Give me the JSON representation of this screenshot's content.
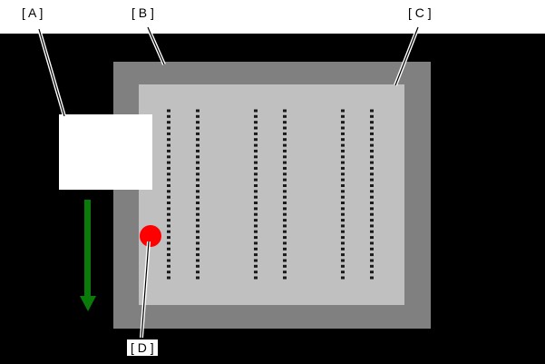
{
  "diagram": {
    "callouts": {
      "a": "[ A ]",
      "b": "[ B ]",
      "c": "[ C ]",
      "d": "[ D ]"
    },
    "colors": {
      "background_dark": "#000000",
      "outer_frame": "#808080",
      "inner_panel": "#c0c0c0",
      "white_block": "#ffffff",
      "arrow": "#0a7a0a",
      "marker": "#ff0000",
      "dots": "#1a1a1a"
    },
    "dot_columns": 6,
    "dots_per_column": 30
  }
}
